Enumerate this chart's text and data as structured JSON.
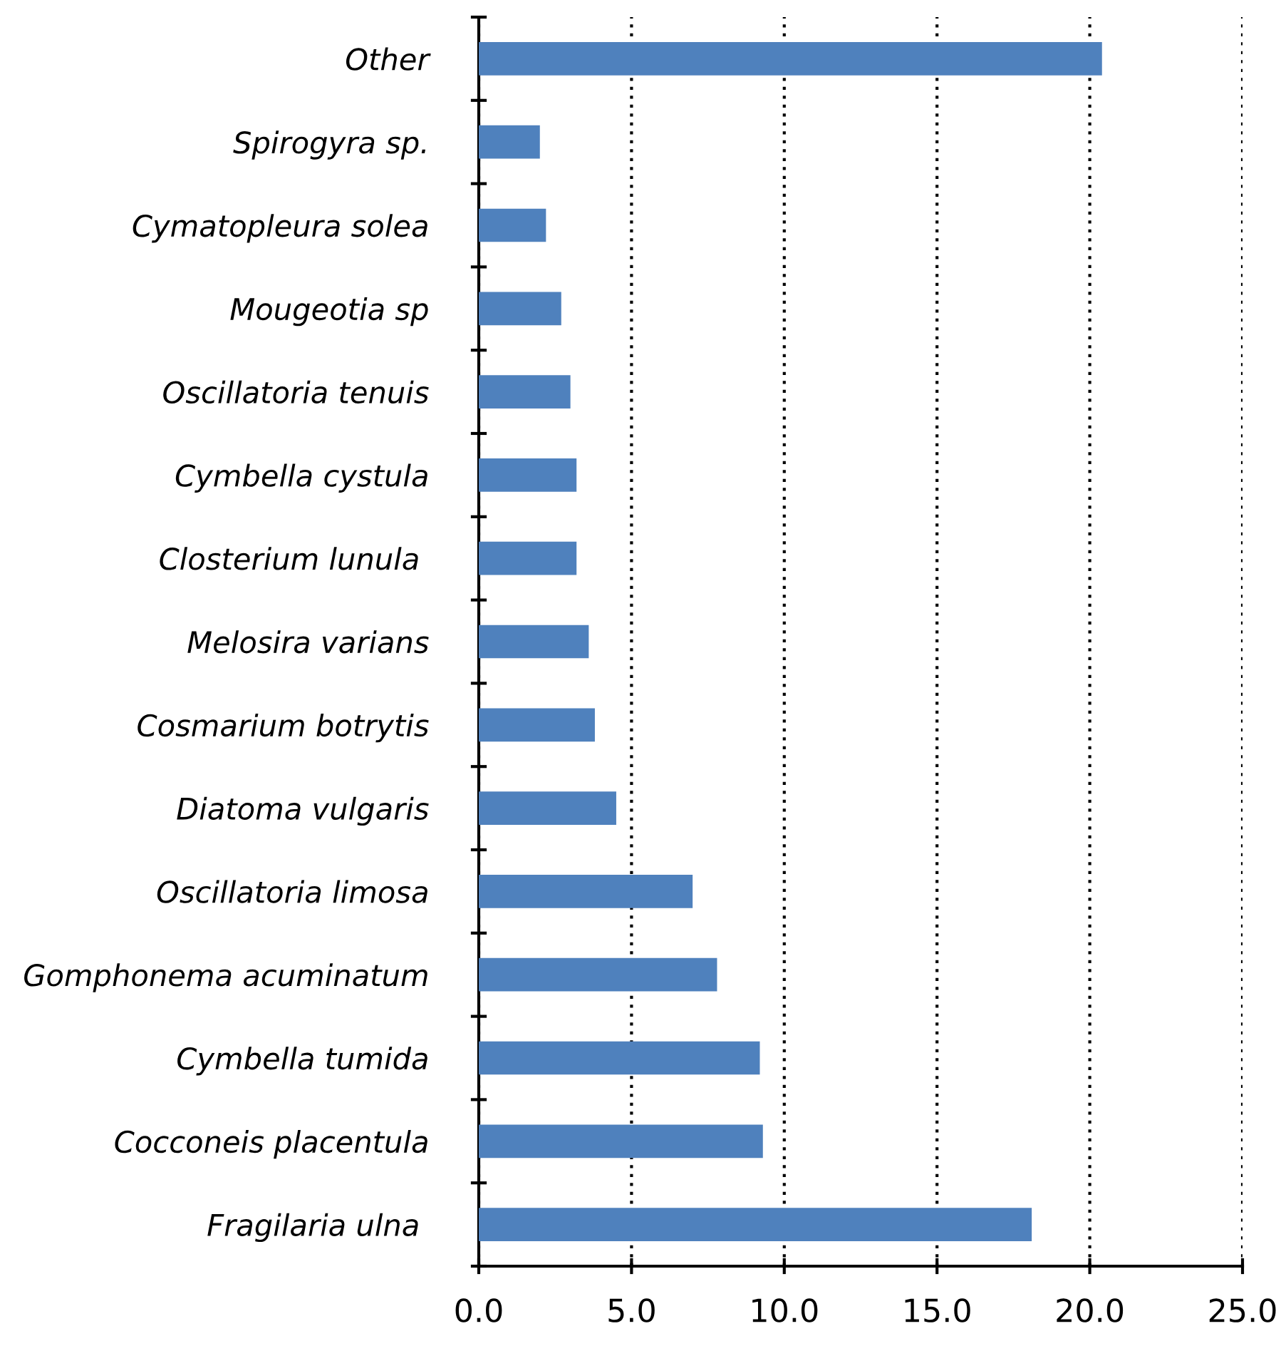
{
  "chart_data": {
    "type": "bar",
    "orientation": "horizontal",
    "categories": [
      "Other",
      "Spirogyra sp.",
      "Cymatopleura solea",
      "Mougeotia sp",
      "Oscillatoria tenuis",
      "Cymbella cystula",
      "Closterium lunula ",
      "Melosira varians",
      "Cosmarium botrytis",
      "Diatoma vulgaris",
      "Oscillatoria limosa",
      "Gomphonema acuminatum",
      "Cymbella tumida",
      "Cocconeis placentula",
      "Fragilaria ulna "
    ],
    "values": [
      20.4,
      2.0,
      2.2,
      2.7,
      3.0,
      3.2,
      3.2,
      3.6,
      3.8,
      4.5,
      7.0,
      7.8,
      9.2,
      9.3,
      18.1
    ],
    "color": "#4f81bd",
    "xlim": [
      0,
      25
    ],
    "xticks": [
      {
        "value": 0,
        "label": "0.0"
      },
      {
        "value": 5,
        "label": "5.0"
      },
      {
        "value": 10,
        "label": "10.0"
      },
      {
        "value": 15,
        "label": "15.0"
      },
      {
        "value": 20,
        "label": "20.0"
      },
      {
        "value": 25,
        "label": "25.0"
      }
    ],
    "grid": "x",
    "legend": false
  }
}
